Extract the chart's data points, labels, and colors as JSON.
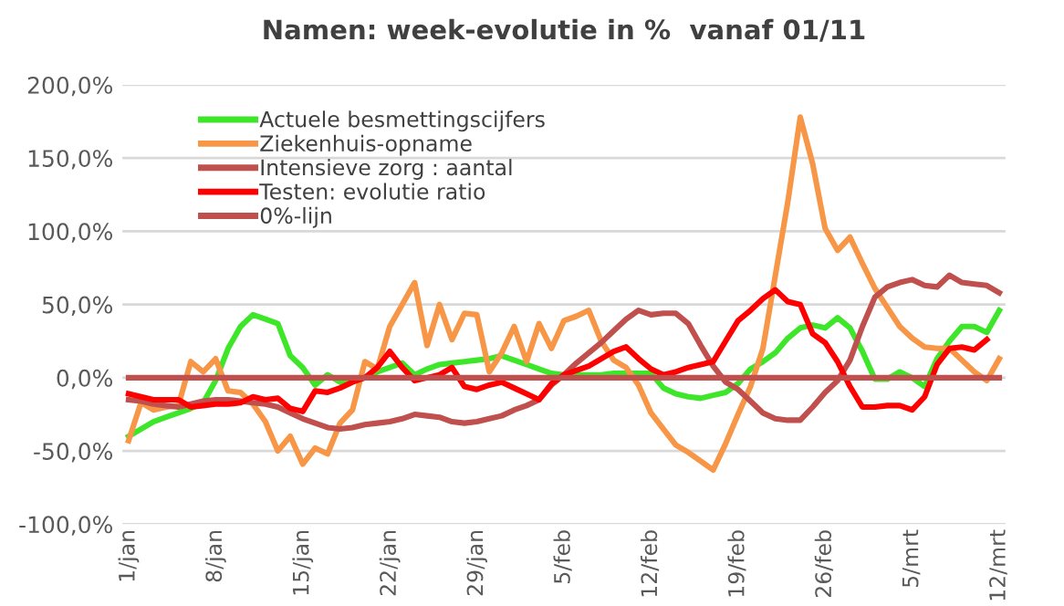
{
  "chart_data": {
    "type": "line",
    "title": "Namen: week-evolutie in %  vanaf 01/11",
    "categories": [
      "1/jan",
      null,
      null,
      null,
      null,
      null,
      null,
      "8/jan",
      null,
      null,
      null,
      null,
      null,
      null,
      "15/jan",
      null,
      null,
      null,
      null,
      null,
      null,
      "22/jan",
      null,
      null,
      null,
      null,
      null,
      null,
      "29/jan",
      null,
      null,
      null,
      null,
      null,
      null,
      "5/feb",
      null,
      null,
      null,
      null,
      null,
      null,
      "12/feb",
      null,
      null,
      null,
      null,
      null,
      null,
      "19/feb",
      null,
      null,
      null,
      null,
      null,
      null,
      "26/feb",
      null,
      null,
      null,
      null,
      null,
      null,
      "5/mrt",
      null,
      null,
      null,
      null,
      null,
      null,
      "12/mrt"
    ],
    "series": [
      {
        "name": "Actuele besmettingscijfers",
        "color": "#3ee62a",
        "values": [
          -40,
          -35,
          -30,
          -27,
          -24,
          -21,
          -17,
          -2,
          20,
          35,
          43,
          40,
          37,
          15,
          7,
          -5,
          2,
          -3,
          -1,
          0,
          4,
          7,
          10,
          2,
          6,
          9,
          10,
          11,
          12,
          13,
          15,
          12,
          9,
          6,
          3,
          2,
          2,
          2,
          2,
          3,
          3,
          3,
          3,
          -7,
          -11,
          -13,
          -14,
          -12,
          -10,
          -4,
          6,
          11,
          17,
          27,
          34,
          36,
          34,
          41,
          34,
          18,
          -1,
          -1,
          4,
          0,
          -6,
          13,
          25,
          35,
          35,
          31,
          46
        ]
      },
      {
        "name": "Ziekenhuis-opname",
        "color": "#f79646",
        "values": [
          -43,
          -17,
          -22,
          -20,
          -19,
          11,
          4,
          13,
          -9,
          -10,
          -18,
          -30,
          -50,
          -40,
          -59,
          -48,
          -52,
          -31,
          -22,
          11,
          6,
          35,
          50,
          65,
          22,
          50,
          26,
          44,
          43,
          4,
          17,
          35,
          11,
          37,
          20,
          39,
          42,
          46,
          25,
          12,
          7,
          -5,
          -24,
          -35,
          -46,
          -51,
          -57,
          -63,
          -45,
          -25,
          -6,
          20,
          70,
          120,
          178,
          146,
          102,
          87,
          96,
          78,
          61,
          48,
          35,
          27,
          21,
          20,
          20,
          12,
          4,
          -2,
          13
        ]
      },
      {
        "name": "Intensieve zorg : aantal",
        "color": "#c0504d",
        "values": [
          -15,
          -16,
          -18,
          -19,
          -20,
          -18,
          -16,
          -15,
          -15,
          -16,
          -17,
          -18,
          -20,
          -24,
          -28,
          -31,
          -34,
          -35,
          -34,
          -32,
          -31,
          -30,
          -28,
          -25,
          -26,
          -27,
          -30,
          -31,
          -30,
          -28,
          -26,
          -22,
          -19,
          -15,
          -5,
          2,
          10,
          17,
          24,
          32,
          40,
          46,
          43,
          44,
          44,
          37,
          22,
          8,
          -3,
          -8,
          -16,
          -24,
          -28,
          -29,
          -29,
          -20,
          -10,
          -2,
          12,
          35,
          55,
          62,
          65,
          67,
          63,
          62,
          70,
          65,
          64,
          63,
          58
        ]
      },
      {
        "name": "Testen: evolutie ratio",
        "color": "#ff0000",
        "values": [
          -11,
          -13,
          -15,
          -15,
          -15,
          -20,
          -19,
          -18,
          -18,
          -17,
          -13,
          -15,
          -14,
          -21,
          -23,
          -9,
          -10,
          -7,
          -3,
          0,
          7,
          18,
          7,
          -2,
          0,
          2,
          7,
          -6,
          -8,
          -5,
          -3,
          -7,
          -11,
          -15,
          -4,
          2,
          5,
          8,
          13,
          18,
          21,
          13,
          6,
          2,
          4,
          7,
          9,
          11,
          25,
          39,
          46,
          54,
          60,
          52,
          50,
          30,
          24,
          11,
          -6,
          -20,
          -20,
          -19,
          -19,
          -22,
          -13,
          9,
          20,
          21,
          19,
          26,
          null
        ]
      },
      {
        "name": "0%-lijn",
        "color": "#c0504d",
        "values": [
          0,
          0,
          0,
          0,
          0,
          0,
          0,
          0,
          0,
          0,
          0,
          0,
          0,
          0,
          0,
          0,
          0,
          0,
          0,
          0,
          0,
          0,
          0,
          0,
          0,
          0,
          0,
          0,
          0,
          0,
          0,
          0,
          0,
          0,
          0,
          0,
          0,
          0,
          0,
          0,
          0,
          0,
          0,
          0,
          0,
          0,
          0,
          0,
          0,
          0,
          0,
          0,
          0,
          0,
          0,
          0,
          0,
          0,
          0,
          0,
          0,
          0,
          0,
          0,
          0,
          0,
          0,
          0,
          0,
          0,
          0
        ]
      }
    ],
    "ylim": [
      -100,
      200
    ],
    "yticks": [
      {
        "value": -100,
        "label": "-100,0%"
      },
      {
        "value": -50,
        "label": "-50,0%"
      },
      {
        "value": 0,
        "label": "0,0%"
      },
      {
        "value": 50,
        "label": "50,0%"
      },
      {
        "value": 100,
        "label": "100,0%"
      },
      {
        "value": 150,
        "label": "150,0%"
      },
      {
        "value": 200,
        "label": "200,0%"
      }
    ],
    "grid": "y",
    "legend": "top left",
    "marker": "none",
    "line_style": "solid"
  }
}
